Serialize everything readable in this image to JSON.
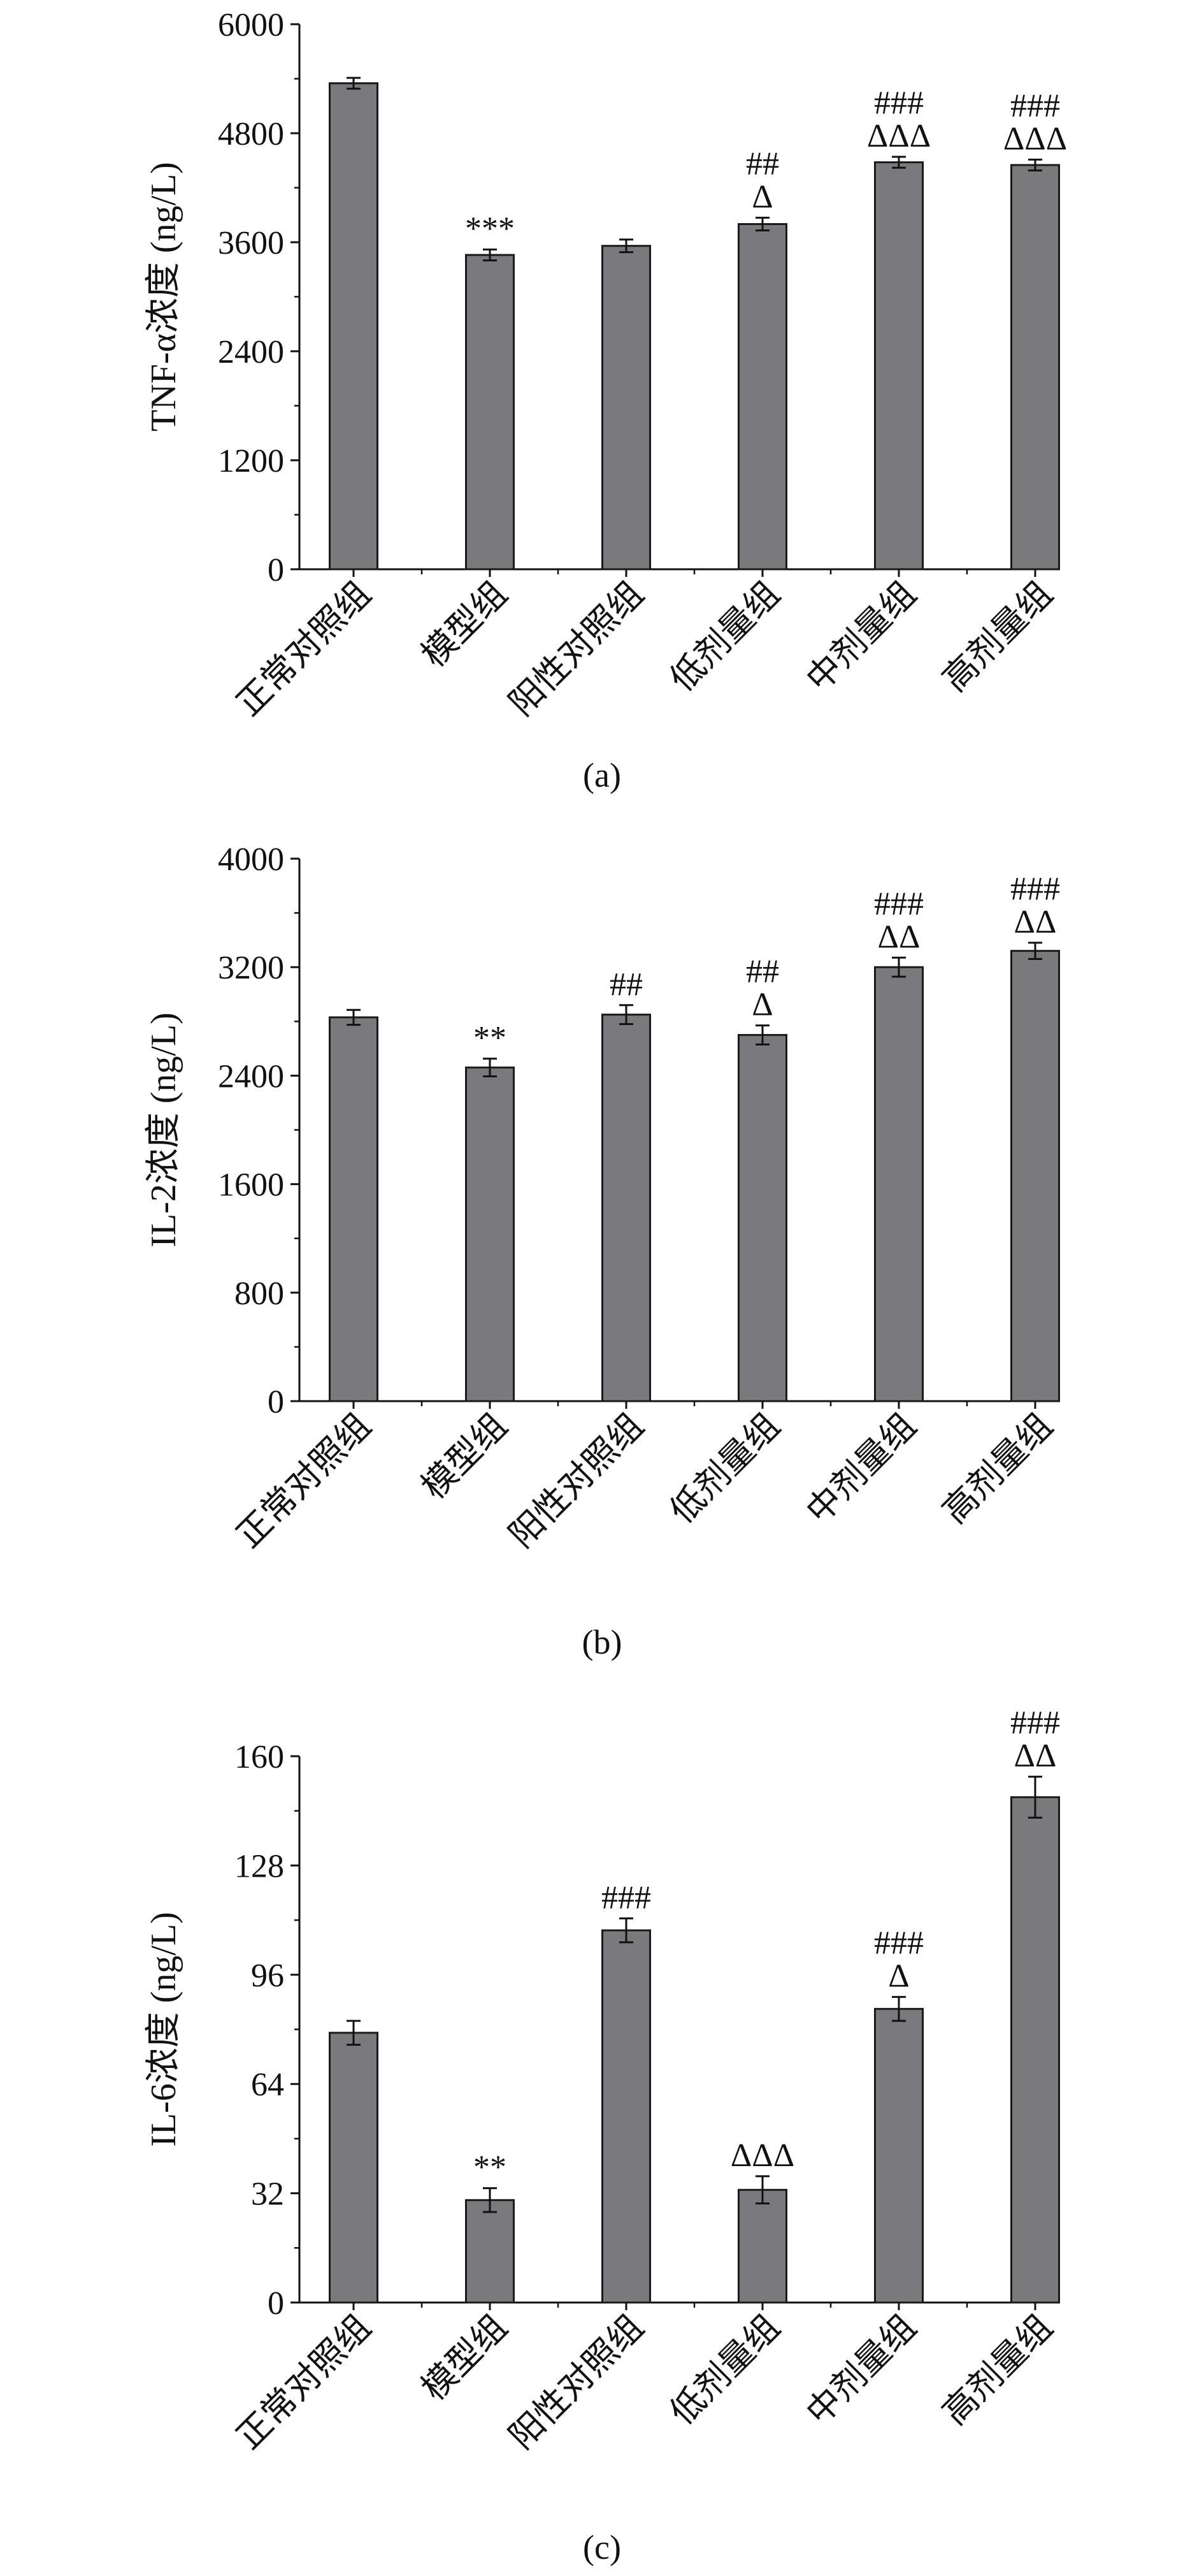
{
  "colors": {
    "bar_fill": "#7a7a7c",
    "bar_stroke": "#1a1a1a",
    "axis": "#111111",
    "background": "#ffffff"
  },
  "chart_data": [
    {
      "panel_label": "(a)",
      "type": "bar",
      "ylabel": "TNF-α浓度 (ng/L)",
      "categories": [
        "正常对照组",
        "模型组",
        "阳性对照组",
        "低剂量组",
        "中剂量组",
        "高剂量组"
      ],
      "values": [
        5350,
        3460,
        3560,
        3800,
        4480,
        4450
      ],
      "errors": [
        60,
        60,
        70,
        70,
        60,
        60
      ],
      "annotations": [
        [],
        [
          "***"
        ],
        [],
        [
          "##",
          "Δ"
        ],
        [
          "###",
          "ΔΔΔ"
        ],
        [
          "###",
          "ΔΔΔ"
        ]
      ],
      "yticks": [
        0,
        1200,
        2400,
        3600,
        4800,
        6000
      ],
      "ylim": [
        0,
        6000
      ]
    },
    {
      "panel_label": "(b)",
      "type": "bar",
      "ylabel": "IL-2浓度 (ng/L)",
      "categories": [
        "正常对照组",
        "模型组",
        "阳性对照组",
        "低剂量组",
        "中剂量组",
        "高剂量组"
      ],
      "values": [
        2830,
        2460,
        2850,
        2700,
        3200,
        3320
      ],
      "errors": [
        55,
        65,
        70,
        70,
        70,
        60
      ],
      "annotations": [
        [],
        [
          "**"
        ],
        [
          "##"
        ],
        [
          "##",
          "Δ"
        ],
        [
          "###",
          "ΔΔ"
        ],
        [
          "###",
          "ΔΔ"
        ]
      ],
      "yticks": [
        0,
        800,
        1600,
        2400,
        3200,
        4000
      ],
      "ylim": [
        0,
        4000
      ]
    },
    {
      "panel_label": "(c)",
      "type": "bar",
      "ylabel": "IL-6浓度 (ng/L)",
      "categories": [
        "正常对照组",
        "模型组",
        "阳性对照组",
        "低剂量组",
        "中剂量组",
        "高剂量组"
      ],
      "values": [
        79,
        30,
        109,
        33,
        86,
        148
      ],
      "errors": [
        3.5,
        3.5,
        3.5,
        4,
        3.5,
        6
      ],
      "annotations": [
        [],
        [
          "**"
        ],
        [
          "###"
        ],
        [
          "ΔΔΔ"
        ],
        [
          "###",
          "Δ"
        ],
        [
          "###",
          "ΔΔ"
        ]
      ],
      "yticks": [
        0,
        32,
        64,
        96,
        128,
        160
      ],
      "ylim": [
        0,
        160
      ]
    }
  ]
}
